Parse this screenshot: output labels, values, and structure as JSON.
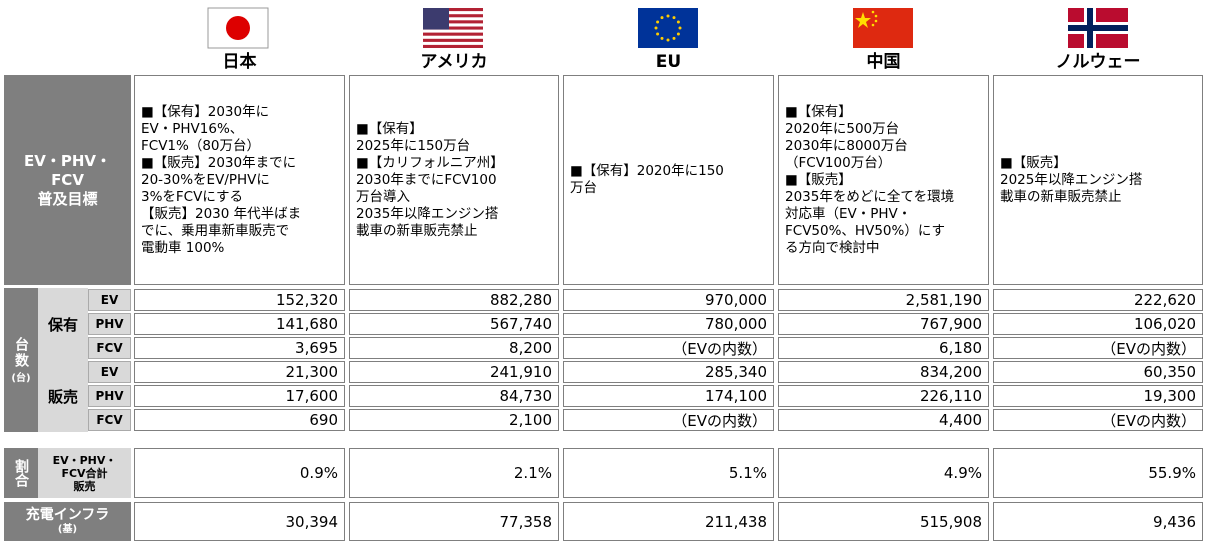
{
  "columns": [
    {
      "name": "日本"
    },
    {
      "name": "アメリカ"
    },
    {
      "name": "EU"
    },
    {
      "name": "中国"
    },
    {
      "name": "ノルウェー"
    }
  ],
  "target": {
    "label": [
      "EV・PHV・",
      "FCV",
      "普及目標"
    ],
    "cells": [
      [
        "■【保有】2030年に",
        "EV・PHV16%、",
        "FCV1%（80万台）",
        "■【販売】2030年までに",
        "20-30%をEV/PHVに",
        "3%をFCVにする",
        "【販売】2030 年代半ばま",
        "でに、乗用車新車販売で",
        "電動車 100%"
      ],
      [
        "■【保有】",
        "2025年に150万台",
        "■【カリフォルニア州】",
        "2030年までにFCV100",
        "万台導入",
        "2035年以降エンジン搭",
        "載車の新車販売禁止"
      ],
      [
        "■【保有】2020年に150",
        "万台"
      ],
      [
        "■【保有】",
        "2020年に500万台",
        "2030年に8000万台",
        "（FCV100万台）",
        "■【販売】",
        "2035年をめどに全てを環境",
        "対応車（EV・PHV・",
        "FCV50%、HV50%）にす",
        "る方向で検討中"
      ],
      [
        "■【販売】",
        "2025年以降エンジン搭",
        "載車の新車販売禁止"
      ]
    ]
  },
  "count": {
    "label": "台数",
    "unit": "(台)",
    "groups": [
      {
        "label": "保有",
        "rows": [
          {
            "label": "EV",
            "cells": [
              "152,320",
              "882,280",
              "970,000",
              "2,581,190",
              "222,620"
            ]
          },
          {
            "label": "PHV",
            "cells": [
              "141,680",
              "567,740",
              "780,000",
              "767,900",
              "106,020"
            ]
          },
          {
            "label": "FCV",
            "cells": [
              "3,695",
              "8,200",
              "（EVの内数）",
              "6,180",
              "（EVの内数）"
            ]
          }
        ]
      },
      {
        "label": "販売",
        "rows": [
          {
            "label": "EV",
            "cells": [
              "21,300",
              "241,910",
              "285,340",
              "834,200",
              "60,350"
            ]
          },
          {
            "label": "PHV",
            "cells": [
              "17,600",
              "84,730",
              "174,100",
              "226,110",
              "19,300"
            ]
          },
          {
            "label": "FCV",
            "cells": [
              "690",
              "2,100",
              "（EVの内数）",
              "4,400",
              "（EVの内数）"
            ]
          }
        ]
      }
    ]
  },
  "share": {
    "label": "割合",
    "sublabel": [
      "EV・PHV・",
      "FCV合計",
      "販売"
    ],
    "cells": [
      "0.9%",
      "2.1%",
      "5.1%",
      "4.9%",
      "55.9%"
    ]
  },
  "infra": {
    "label": "充電インフラ",
    "unit": "(基)",
    "cells": [
      "30,394",
      "77,358",
      "211,438",
      "515,908",
      "9,436"
    ]
  }
}
